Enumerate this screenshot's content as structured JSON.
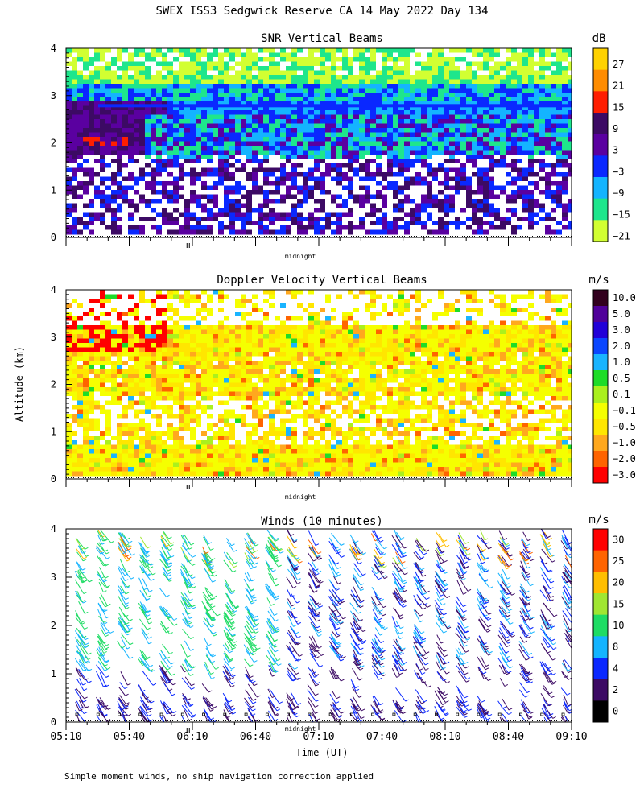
{
  "title": "SWEX ISS3 Sedgwick Reserve CA  14 May 2022 Day 134",
  "y_axis_label": "Altitude (km)",
  "x_axis_label": "Time (UT)",
  "footnote": "Simple moment winds, no ship navigation correction applied",
  "midnight_label": "midnight",
  "chart_data": [
    {
      "type": "heatmap",
      "title": "SNR Vertical Beams",
      "ylim": [
        0,
        4
      ],
      "yticks": [
        "0",
        "1",
        "2",
        "3",
        "4"
      ],
      "colorbar_unit": "dB",
      "colorbar_labels": [
        "27",
        "21",
        "15",
        "9",
        "3",
        "−3",
        "−9",
        "−15",
        "−21"
      ],
      "colorbar_colors": [
        "#ffd200",
        "#ff8c00",
        "#ff1e00",
        "#3c0a64",
        "#5a00a0",
        "#0a28ff",
        "#14b4ff",
        "#1ee68c",
        "#d2ff32"
      ]
    },
    {
      "type": "heatmap",
      "title": "Doppler Velocity Vertical Beams",
      "ylim": [
        0,
        4
      ],
      "yticks": [
        "0",
        "1",
        "2",
        "3",
        "4"
      ],
      "colorbar_unit": "m/s",
      "colorbar_labels": [
        "10.0",
        "5.0",
        "3.0",
        "2.0",
        "1.0",
        "0.5",
        "0.1",
        "−0.1",
        "−0.5",
        "−1.0",
        "−2.0",
        "−3.0"
      ],
      "colorbar_colors": [
        "#32001e",
        "#50009a",
        "#2200d8",
        "#0a46ff",
        "#19b4ff",
        "#1edc28",
        "#aaf01e",
        "#f5ff00",
        "#ffe600",
        "#ffa81e",
        "#ff6400",
        "#ff0000"
      ]
    },
    {
      "type": "scatter",
      "title": "Winds (10 minutes)",
      "ylim": [
        0,
        4
      ],
      "yticks": [
        "0",
        "1",
        "2",
        "3",
        "4"
      ],
      "colorbar_unit": "m/s",
      "colorbar_labels": [
        "30",
        "25",
        "20",
        "15",
        "10",
        "8",
        "4",
        "2",
        "0"
      ],
      "colorbar_colors": [
        "#ff0000",
        "#ff6400",
        "#ffbe00",
        "#a0e632",
        "#1edc64",
        "#14b4ff",
        "#0a28ff",
        "#3c0a64",
        "#000000"
      ],
      "xticks": [
        "05:10",
        "05:40",
        "06:10",
        "06:40",
        "07:10",
        "07:40",
        "08:10",
        "08:40",
        "09:10"
      ]
    }
  ]
}
